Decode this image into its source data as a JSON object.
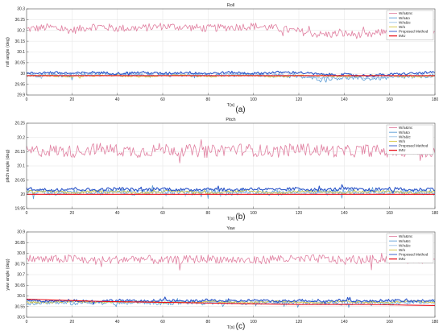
{
  "chart_data": [
    {
      "type": "line",
      "title": "Roll",
      "xlabel": "T(s)",
      "ylabel": "roll angle (deg)",
      "caption": "(a)",
      "xlim": [
        0,
        180
      ],
      "ylim": [
        29.9,
        30.3
      ],
      "xticks": [
        0,
        20,
        40,
        60,
        80,
        100,
        120,
        140,
        160,
        180
      ],
      "yticks": [
        29.9,
        29.95,
        30,
        30.05,
        30.1,
        30.15,
        30.2,
        30.25,
        30.3
      ],
      "grid": true,
      "legend_position": "top-right",
      "series": [
        {
          "name": "W/o&Inc",
          "color": "#e07fa0",
          "x": [
            0,
            10,
            20,
            30,
            40,
            50,
            60,
            70,
            80,
            90,
            100,
            110,
            120,
            130,
            140,
            150,
            160,
            170,
            180
          ],
          "values": [
            30.205,
            30.215,
            30.2,
            30.22,
            30.21,
            30.21,
            30.22,
            30.215,
            30.21,
            30.215,
            30.22,
            30.21,
            30.195,
            30.18,
            30.185,
            30.175,
            30.2,
            30.185,
            30.195
          ]
        },
        {
          "name": "W/o&o",
          "color": "#5b9bd5",
          "x": [
            0,
            10,
            20,
            30,
            40,
            50,
            60,
            70,
            80,
            90,
            100,
            110,
            120,
            130,
            140,
            150,
            160,
            170,
            180
          ],
          "values": [
            29.99,
            29.995,
            29.99,
            30,
            29.995,
            29.99,
            29.995,
            29.99,
            29.995,
            29.99,
            29.995,
            29.99,
            29.985,
            29.975,
            29.98,
            29.975,
            29.98,
            29.985,
            29.99
          ]
        },
        {
          "name": "W/o&tc",
          "color": "#9dc3e6",
          "x": [
            0,
            10,
            20,
            30,
            40,
            50,
            60,
            70,
            80,
            90,
            100,
            110,
            120,
            130,
            140,
            150,
            160,
            170,
            180
          ],
          "values": [
            29.995,
            29.99,
            29.995,
            29.99,
            29.995,
            29.995,
            29.99,
            29.995,
            29.99,
            29.995,
            29.99,
            29.995,
            29.99,
            29.98,
            29.985,
            29.98,
            29.985,
            29.99,
            29.985
          ]
        },
        {
          "name": "W/o",
          "color": "#d4c43c",
          "x": [
            0,
            10,
            20,
            30,
            40,
            50,
            60,
            70,
            80,
            90,
            100,
            110,
            120,
            130,
            140,
            150,
            160,
            170,
            180
          ],
          "values": [
            29.99,
            29.99,
            29.985,
            29.99,
            29.99,
            29.985,
            29.99,
            29.99,
            29.985,
            29.99,
            29.99,
            29.985,
            29.99,
            29.99,
            29.985,
            29.99,
            29.99,
            29.985,
            29.99
          ]
        },
        {
          "name": "Proposed Method",
          "color": "#2b55c8",
          "x": [
            0,
            10,
            20,
            30,
            40,
            50,
            60,
            70,
            80,
            90,
            100,
            110,
            120,
            130,
            140,
            150,
            160,
            170,
            180
          ],
          "values": [
            30,
            30.005,
            30,
            30.005,
            30,
            30.005,
            30,
            30.005,
            30,
            30.005,
            30,
            30.005,
            30.005,
            29.995,
            29.995,
            29.99,
            29.995,
            30,
            30.005
          ]
        },
        {
          "name": "IMU",
          "color": "#e8101a",
          "x": [
            0,
            180
          ],
          "values": [
            29.99,
            29.99
          ]
        }
      ]
    },
    {
      "type": "line",
      "title": "Pitch",
      "xlabel": "T(s)",
      "ylabel": "pitch angle (deg)",
      "caption": "(b)",
      "xlim": [
        0,
        180
      ],
      "ylim": [
        19.95,
        20.25
      ],
      "xticks": [
        0,
        20,
        40,
        60,
        80,
        100,
        120,
        140,
        160,
        180
      ],
      "yticks": [
        19.95,
        20,
        20.05,
        20.1,
        20.15,
        20.2,
        20.25
      ],
      "grid": true,
      "legend_position": "top-right",
      "series": [
        {
          "name": "W/o&Inc",
          "color": "#e07fa0",
          "x": [
            0,
            10,
            20,
            30,
            40,
            50,
            60,
            70,
            80,
            90,
            100,
            110,
            120,
            130,
            140,
            150,
            160,
            170,
            180
          ],
          "values": [
            20.15,
            20.155,
            20.15,
            20.16,
            20.155,
            20.15,
            20.16,
            20.155,
            20.15,
            20.16,
            20.155,
            20.15,
            20.16,
            20.155,
            20.15,
            20.155,
            20.15,
            20.155,
            20.15
          ]
        },
        {
          "name": "W/o&o",
          "color": "#5b9bd5",
          "x": [
            0,
            10,
            20,
            30,
            40,
            50,
            60,
            70,
            80,
            90,
            100,
            110,
            120,
            130,
            140,
            150,
            160,
            170,
            180
          ],
          "values": [
            20.01,
            20.005,
            20.01,
            20.005,
            20.01,
            20.005,
            20.01,
            20.005,
            20.01,
            20.005,
            20.01,
            20.005,
            20.01,
            20.005,
            20.01,
            20.005,
            20.01,
            20.005,
            20.01
          ]
        },
        {
          "name": "W/o&tc",
          "color": "#9dc3e6",
          "x": [
            0,
            10,
            20,
            30,
            40,
            50,
            60,
            70,
            80,
            90,
            100,
            110,
            120,
            130,
            140,
            150,
            160,
            170,
            180
          ],
          "values": [
            20.005,
            20.01,
            20.005,
            20.01,
            20.005,
            20.01,
            20.005,
            20.01,
            20.005,
            20.01,
            20.005,
            20.01,
            20.005,
            20.01,
            20.005,
            20.01,
            20.005,
            20.01,
            20.005
          ]
        },
        {
          "name": "W/o",
          "color": "#d4c43c",
          "x": [
            0,
            10,
            20,
            30,
            40,
            50,
            60,
            70,
            80,
            90,
            100,
            110,
            120,
            130,
            140,
            150,
            160,
            170,
            180
          ],
          "values": [
            20.01,
            20.01,
            20.005,
            20.01,
            20.01,
            20.005,
            20.01,
            20.01,
            20.005,
            20.01,
            20.01,
            20.005,
            20.01,
            20.01,
            20.005,
            20.01,
            20.01,
            20.005,
            20.01
          ]
        },
        {
          "name": "Proposed Method",
          "color": "#2b55c8",
          "x": [
            0,
            10,
            20,
            30,
            40,
            50,
            60,
            70,
            80,
            90,
            100,
            110,
            120,
            130,
            140,
            150,
            160,
            170,
            180
          ],
          "values": [
            20.02,
            20.015,
            20.02,
            20.015,
            20.02,
            20.015,
            20.02,
            20.015,
            20.02,
            20.015,
            20.02,
            20.015,
            20.02,
            20.015,
            20.02,
            20.015,
            20.02,
            20.015,
            20.02
          ]
        },
        {
          "name": "IMU",
          "color": "#e8101a",
          "x": [
            0,
            180
          ],
          "values": [
            20.0,
            20.0
          ]
        }
      ]
    },
    {
      "type": "line",
      "title": "Yaw",
      "xlabel": "T(s)",
      "ylabel": "yaw angle (deg)",
      "caption": "(c)",
      "xlim": [
        0,
        180
      ],
      "ylim": [
        30.5,
        30.9
      ],
      "xticks": [
        0,
        20,
        40,
        60,
        80,
        100,
        120,
        140,
        160,
        180
      ],
      "yticks": [
        30.5,
        30.55,
        30.6,
        30.65,
        30.7,
        30.75,
        30.8,
        30.85,
        30.9
      ],
      "grid": true,
      "legend_position": "top-right",
      "series": [
        {
          "name": "W/o&Inc",
          "color": "#e07fa0",
          "x": [
            0,
            10,
            20,
            30,
            40,
            50,
            60,
            70,
            80,
            90,
            100,
            110,
            120,
            130,
            140,
            150,
            160,
            170,
            180
          ],
          "values": [
            30.775,
            30.77,
            30.775,
            30.765,
            30.77,
            30.775,
            30.765,
            30.77,
            30.775,
            30.77,
            30.765,
            30.775,
            30.77,
            30.775,
            30.765,
            30.77,
            30.775,
            30.77,
            30.775
          ]
        },
        {
          "name": "W/o&tc",
          "color": "#5b9bd5",
          "x": [
            0,
            10,
            20,
            30,
            40,
            50,
            60,
            70,
            80,
            90,
            100,
            110,
            120,
            130,
            140,
            150,
            160,
            170,
            180
          ],
          "values": [
            30.565,
            30.57,
            30.565,
            30.57,
            30.565,
            30.57,
            30.565,
            30.57,
            30.565,
            30.57,
            30.565,
            30.57,
            30.565,
            30.57,
            30.565,
            30.57,
            30.565,
            30.57,
            30.575
          ]
        },
        {
          "name": "W/o&tc",
          "color": "#9dc3e6",
          "x": [
            0,
            10,
            20,
            30,
            40,
            50,
            60,
            70,
            80,
            90,
            100,
            110,
            120,
            130,
            140,
            150,
            160,
            170,
            180
          ],
          "values": [
            30.575,
            30.57,
            30.575,
            30.57,
            30.575,
            30.57,
            30.575,
            30.57,
            30.575,
            30.57,
            30.575,
            30.57,
            30.575,
            30.57,
            30.575,
            30.57,
            30.575,
            30.57,
            30.565
          ]
        },
        {
          "name": "W/o",
          "color": "#d4c43c",
          "x": [
            0,
            10,
            20,
            30,
            40,
            50,
            60,
            70,
            80,
            90,
            100,
            110,
            120,
            130,
            140,
            150,
            160,
            170,
            180
          ],
          "values": [
            30.57,
            30.57,
            30.575,
            30.57,
            30.57,
            30.575,
            30.57,
            30.57,
            30.575,
            30.57,
            30.57,
            30.575,
            30.57,
            30.57,
            30.575,
            30.57,
            30.57,
            30.575,
            30.57
          ]
        },
        {
          "name": "Proposed Method",
          "color": "#2b55c8",
          "x": [
            0,
            10,
            20,
            30,
            40,
            50,
            60,
            70,
            80,
            90,
            100,
            110,
            120,
            130,
            140,
            150,
            160,
            170,
            180
          ],
          "values": [
            30.58,
            30.575,
            30.58,
            30.575,
            30.58,
            30.575,
            30.58,
            30.575,
            30.58,
            30.575,
            30.58,
            30.575,
            30.58,
            30.575,
            30.58,
            30.575,
            30.58,
            30.575,
            30.58
          ]
        },
        {
          "name": "IMU",
          "color": "#e8101a",
          "x": [
            0,
            30,
            60,
            90,
            120,
            150,
            180
          ],
          "values": [
            30.585,
            30.575,
            30.57,
            30.565,
            30.56,
            30.56,
            30.555
          ]
        }
      ]
    }
  ]
}
